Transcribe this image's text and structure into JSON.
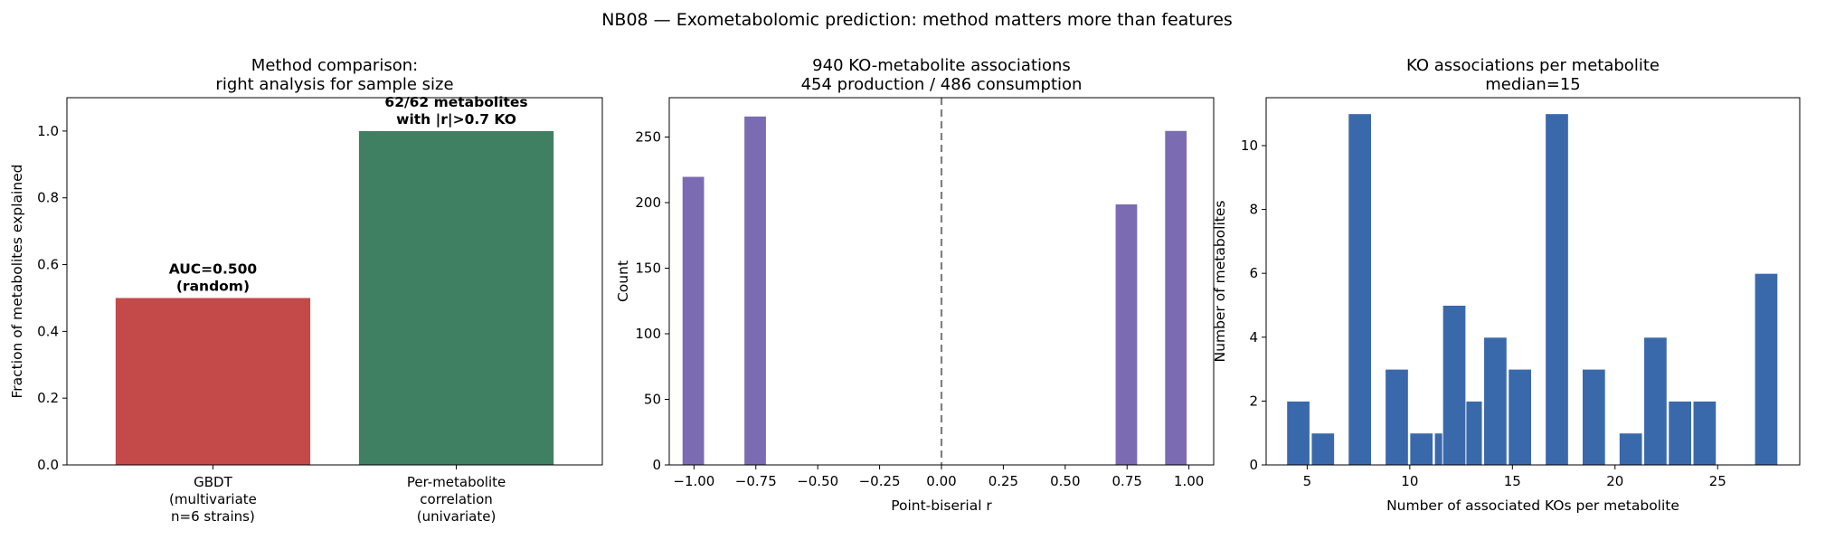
{
  "figure": {
    "suptitle": "NB08 — Exometabolomic prediction: method matters more than features"
  },
  "chart_data": [
    {
      "type": "bar",
      "title": "Method comparison:\nright analysis for sample size",
      "xlabel": "",
      "ylabel": "Fraction of metabolites explained",
      "categories": [
        "GBDT\n(multivariate\nn=6 strains)",
        "Per-metabolite\ncorrelation\n(univariate)"
      ],
      "values": [
        0.5,
        1.0
      ],
      "colors": [
        "#c44a4a",
        "#3f8062"
      ],
      "annotations": [
        "AUC=0.500\n(random)",
        "62/62 metabolites\nwith |r|>0.7 KO"
      ],
      "ylim": [
        0,
        1.1
      ],
      "yticks": [
        0.0,
        0.2,
        0.4,
        0.6,
        0.8,
        1.0
      ],
      "ytick_labels": [
        "0.0",
        "0.2",
        "0.4",
        "0.6",
        "0.8",
        "1.0"
      ],
      "grid": false
    },
    {
      "type": "bar",
      "title": "940 KO-metabolite associations\n454 production / 486 consumption",
      "xlabel": "Point-biserial r",
      "ylabel": "Count",
      "color": "#7a6bb3",
      "bars": [
        {
          "x": -1.0,
          "value": 220
        },
        {
          "x": -0.75,
          "value": 266
        },
        {
          "x": 0.75,
          "value": 199
        },
        {
          "x": 0.95,
          "value": 255
        }
      ],
      "bin_width": 0.096,
      "xlim": [
        -1.1,
        1.1
      ],
      "ylim": [
        0,
        280
      ],
      "xticks": [
        -1.0,
        -0.75,
        -0.5,
        -0.25,
        0.0,
        0.25,
        0.5,
        0.75,
        1.0
      ],
      "xtick_labels": [
        "−1.00",
        "−0.75",
        "−0.50",
        "−0.25",
        "0.00",
        "0.25",
        "0.50",
        "0.75",
        "1.00"
      ],
      "yticks": [
        0,
        50,
        100,
        150,
        200,
        250
      ],
      "ytick_labels": [
        "0",
        "50",
        "100",
        "150",
        "200",
        "250"
      ],
      "vline": {
        "x": 0.0,
        "style": "dashed",
        "color": "#808080"
      },
      "grid": false
    },
    {
      "type": "bar",
      "title": "KO associations per metabolite\nmedian=15",
      "xlabel": "Number of associated KOs per metabolite",
      "ylabel": "Number of metabolites",
      "color": "#3a69ab",
      "bin_width": 1.2,
      "bars": [
        {
          "x": 4.6,
          "value": 2
        },
        {
          "x": 5.8,
          "value": 1
        },
        {
          "x": 7.6,
          "value": 11
        },
        {
          "x": 9.4,
          "value": 3
        },
        {
          "x": 10.6,
          "value": 1
        },
        {
          "x": 11.8,
          "value": 1
        },
        {
          "x": 13.0,
          "value": 2
        },
        {
          "x": 12.2,
          "value": 5
        },
        {
          "x": 14.2,
          "value": 4
        },
        {
          "x": 15.4,
          "value": 3
        },
        {
          "x": 17.2,
          "value": 11
        },
        {
          "x": 19.0,
          "value": 3
        },
        {
          "x": 20.8,
          "value": 1
        },
        {
          "x": 22.0,
          "value": 4
        },
        {
          "x": 23.2,
          "value": 2
        },
        {
          "x": 24.4,
          "value": 2
        },
        {
          "x": 27.4,
          "value": 6
        }
      ],
      "xlim": [
        3.0,
        29.0
      ],
      "ylim": [
        0,
        11.5
      ],
      "xticks": [
        5,
        10,
        15,
        20,
        25
      ],
      "xtick_labels": [
        "5",
        "10",
        "15",
        "20",
        "25"
      ],
      "yticks": [
        0,
        2,
        4,
        6,
        8,
        10
      ],
      "ytick_labels": [
        "0",
        "2",
        "4",
        "6",
        "8",
        "10"
      ],
      "grid": false
    }
  ]
}
